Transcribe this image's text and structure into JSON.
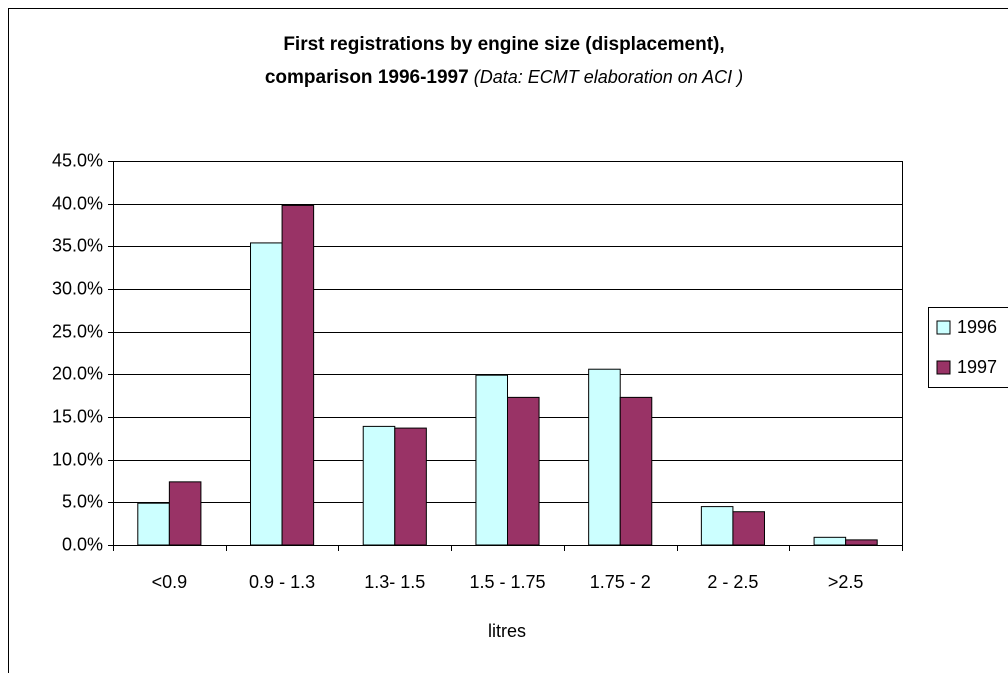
{
  "chart_data": {
    "type": "bar",
    "title": [
      "First registrations by engine size (displacement),",
      "comparison 1996-1997"
    ],
    "source": "(Data: ECMT elaboration on ACI )",
    "x_label": "litres",
    "categories": [
      "<0.9",
      "0.9 - 1.3",
      "1.3- 1.5",
      "1.5 - 1.75",
      "1.75 - 2",
      "2 - 2.5",
      ">2.5"
    ],
    "series": [
      {
        "name": "1996",
        "color": "#ccffff",
        "values": [
          4.9,
          35.4,
          13.9,
          19.9,
          20.6,
          4.5,
          0.9
        ]
      },
      {
        "name": "1997",
        "color": "#993366",
        "values": [
          7.4,
          39.8,
          13.7,
          17.3,
          17.3,
          3.9,
          0.6
        ]
      }
    ],
    "ylim": [
      0,
      45
    ],
    "yticks": [
      {
        "value": 0,
        "label": "0.0%"
      },
      {
        "value": 5,
        "label": "5.0%"
      },
      {
        "value": 10,
        "label": "10.0%"
      },
      {
        "value": 15,
        "label": "15.0%"
      },
      {
        "value": 20,
        "label": "20.0%"
      },
      {
        "value": 25,
        "label": "25.0%"
      },
      {
        "value": 30,
        "label": "30.0%"
      },
      {
        "value": 35,
        "label": "35.0%"
      },
      {
        "value": 40,
        "label": "40.0%"
      },
      {
        "value": 45,
        "label": "45.0%"
      }
    ],
    "grid": true,
    "legend": "right"
  }
}
